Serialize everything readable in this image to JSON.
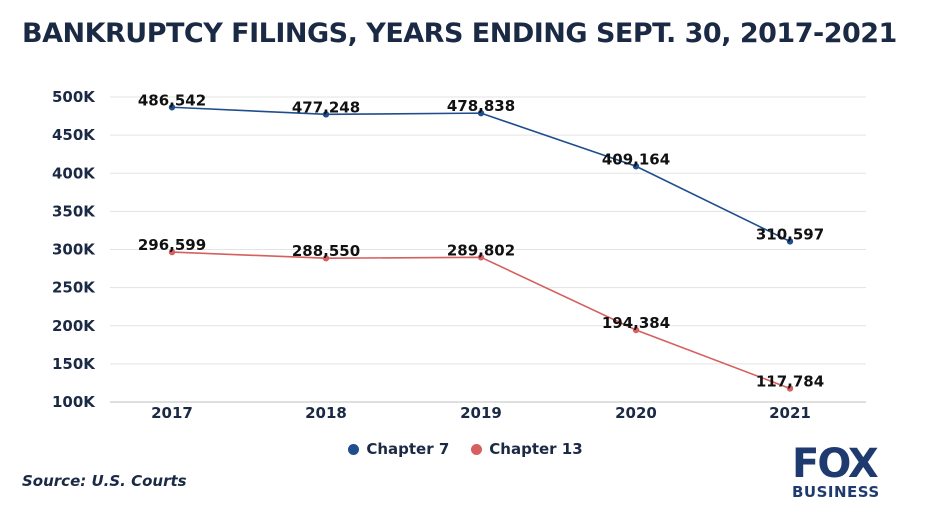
{
  "chart_data": {
    "type": "line",
    "title": "BANKRUPTCY FILINGS, YEARS ENDING SEPT. 30, 2017-2021",
    "xlabel": "",
    "ylabel": "",
    "categories": [
      "2017",
      "2018",
      "2019",
      "2020",
      "2021"
    ],
    "y_ticks": [
      "100K",
      "150K",
      "200K",
      "250K",
      "300K",
      "350K",
      "400K",
      "450K",
      "500K"
    ],
    "y_tick_values": [
      100000,
      150000,
      200000,
      250000,
      300000,
      350000,
      400000,
      450000,
      500000
    ],
    "ylim": [
      100000,
      500000
    ],
    "grid": true,
    "legend_placement": "bottom-center",
    "series": [
      {
        "name": "Chapter 7",
        "color": "#1f4e8c",
        "values": [
          486542,
          477248,
          478838,
          409164,
          310597
        ],
        "labels": [
          "486,542",
          "477,248",
          "478,838",
          "409,164",
          "310,597"
        ]
      },
      {
        "name": "Chapter 13",
        "color": "#d65f5f",
        "values": [
          296599,
          288550,
          289802,
          194384,
          117784
        ],
        "labels": [
          "296,599",
          "288,550",
          "289,802",
          "194,384",
          "117,784"
        ]
      }
    ],
    "source": "Source: U.S. Courts"
  },
  "logo": {
    "top": "FOX",
    "bottom": "BUSINESS",
    "color": "#1f3a6e"
  }
}
